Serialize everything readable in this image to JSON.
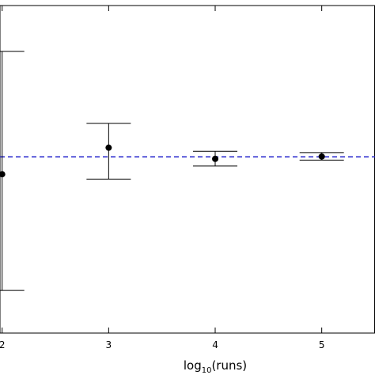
{
  "chart_data": {
    "type": "scatter",
    "xlabel": "log10(runs)",
    "xlabel_base": "log",
    "xlabel_sub": "10",
    "xlabel_rest": "(runs)",
    "xlim": [
      1.98,
      5.5
    ],
    "ylim": [
      0.0,
      1.0
    ],
    "x_ticks": [
      2,
      3,
      4,
      5
    ],
    "x_tick_labels": [
      "2",
      "3",
      "4",
      "5"
    ],
    "series": [
      {
        "points": [
          {
            "x": 2,
            "y": 0.485,
            "lo": 0.13,
            "hi": 0.86
          },
          {
            "x": 3,
            "y": 0.566,
            "lo": 0.47,
            "hi": 0.64
          },
          {
            "x": 4,
            "y": 0.532,
            "lo": 0.51,
            "hi": 0.555
          },
          {
            "x": 5,
            "y": 0.539,
            "lo": 0.528,
            "hi": 0.551
          }
        ]
      }
    ],
    "reference_line": {
      "y": 0.538,
      "style": "dashed",
      "color": "#2222cc"
    },
    "marker_color": "#000000",
    "errorbar_color": "#000000"
  }
}
